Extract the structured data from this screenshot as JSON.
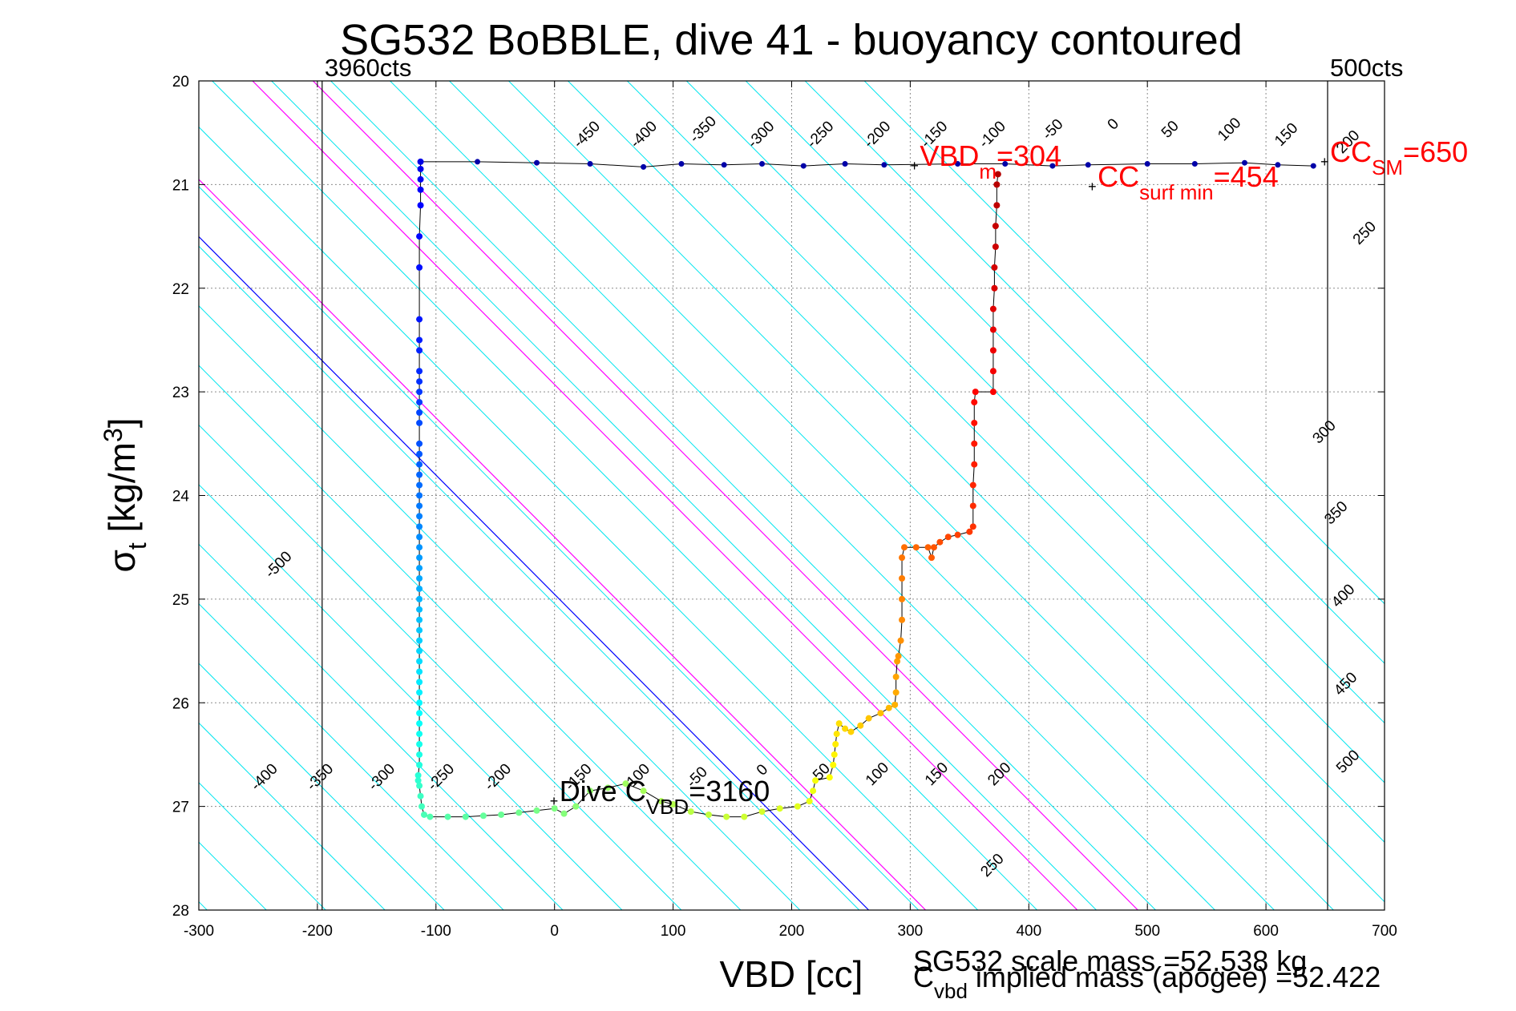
{
  "chart_data": {
    "type": "scatter",
    "title": "SG532 BoBBLE, dive 41 - buoyancy contoured",
    "xlabel": "VBD [cc]",
    "ylabel_main": "σ",
    "ylabel_sub": "t",
    "ylabel_unit_pre": " [kg/m",
    "ylabel_unit_sup": "3",
    "ylabel_unit_post": "]",
    "xlim": [
      -300,
      700
    ],
    "ylim": [
      28,
      20
    ],
    "y_reversed": true,
    "grid": true,
    "x_ticks": [
      -300,
      -200,
      -100,
      0,
      100,
      200,
      300,
      400,
      500,
      600,
      700
    ],
    "y_ticks": [
      20,
      21,
      22,
      23,
      24,
      25,
      26,
      27,
      28
    ],
    "x_tick_labels": [
      "-300",
      "-200",
      "-100",
      "0",
      "100",
      "200",
      "300",
      "400",
      "500",
      "600",
      "700"
    ],
    "y_tick_labels": [
      "20",
      "21",
      "22",
      "23",
      "24",
      "25",
      "26",
      "27",
      "28"
    ],
    "vertical_limits": [
      {
        "x": -196,
        "label": "3960cts"
      },
      {
        "x": 652,
        "label": "500cts"
      }
    ],
    "contour_slope": 0.0115,
    "contour_step": 50,
    "contour_range": [
      -500,
      500
    ],
    "contour_x_at_sigma27": [
      -480,
      -430,
      -380,
      -330,
      -280,
      -230,
      -180,
      -130,
      -80,
      -30,
      20,
      70,
      120,
      170,
      220,
      270,
      320,
      370,
      420,
      470,
      520
    ],
    "contour_labels_bottom": [
      {
        "text": "-400",
        "x": -242,
        "y": 26.75
      },
      {
        "text": "-350",
        "x": -195,
        "y": 26.75
      },
      {
        "text": "-300",
        "x": -143,
        "y": 26.75
      },
      {
        "text": "-250",
        "x": -93,
        "y": 26.75
      },
      {
        "text": "-200",
        "x": -45,
        "y": 26.75
      },
      {
        "text": "-150",
        "x": 23,
        "y": 26.75
      },
      {
        "text": "-100",
        "x": 72,
        "y": 26.75
      },
      {
        "text": "-50",
        "x": 123,
        "y": 26.75
      },
      {
        "text": "0",
        "x": 178,
        "y": 26.68
      },
      {
        "text": "50",
        "x": 228,
        "y": 26.7
      },
      {
        "text": "100",
        "x": 275,
        "y": 26.72
      },
      {
        "text": "150",
        "x": 325,
        "y": 26.72
      },
      {
        "text": "200",
        "x": 378,
        "y": 26.72
      },
      {
        "text": "250",
        "x": 372,
        "y": 27.6
      }
    ],
    "contour_labels_top": [
      {
        "text": "-450",
        "x": 30,
        "y": 20.55
      },
      {
        "text": "-400",
        "x": 78,
        "y": 20.55
      },
      {
        "text": "-350",
        "x": 128,
        "y": 20.5
      },
      {
        "text": "-300",
        "x": 177,
        "y": 20.55
      },
      {
        "text": "-250",
        "x": 227,
        "y": 20.55
      },
      {
        "text": "-200",
        "x": 275,
        "y": 20.55
      },
      {
        "text": "-150",
        "x": 323,
        "y": 20.55
      },
      {
        "text": "-100",
        "x": 372,
        "y": 20.55
      },
      {
        "text": "-50",
        "x": 423,
        "y": 20.5
      },
      {
        "text": "0",
        "x": 474,
        "y": 20.45
      },
      {
        "text": "50",
        "x": 522,
        "y": 20.5
      },
      {
        "text": "100",
        "x": 572,
        "y": 20.5
      },
      {
        "text": "150",
        "x": 620,
        "y": 20.55
      },
      {
        "text": "200",
        "x": 672,
        "y": 20.62
      },
      {
        "text": "250",
        "x": 686,
        "y": 21.5
      },
      {
        "text": "300",
        "x": 652,
        "y": 23.42
      },
      {
        "text": "350",
        "x": 662,
        "y": 24.2
      },
      {
        "text": "400",
        "x": 668,
        "y": 25.0
      },
      {
        "text": "450",
        "x": 670,
        "y": 25.85
      },
      {
        "text": "500",
        "x": 672,
        "y": 26.6
      },
      {
        "text": "-500",
        "x": -230,
        "y": 24.7
      }
    ],
    "neutral_line": {
      "color": "#0000ff",
      "x_at_sigma27": 178
    },
    "magenta_lines": {
      "color": "#ff00ff",
      "x_at_sigma27": [
        226,
        354,
        405
      ]
    },
    "series": [
      {
        "points": [
          [
            -113,
            20.78
          ],
          [
            -113,
            20.85
          ],
          [
            -113,
            20.95
          ],
          [
            -113,
            21.05
          ],
          [
            -113,
            21.2
          ],
          [
            -114,
            21.5
          ],
          [
            -114,
            21.8
          ],
          [
            -114,
            22.3
          ],
          [
            -114,
            22.5
          ],
          [
            -114,
            22.6
          ],
          [
            -114,
            22.8
          ],
          [
            -114,
            22.9
          ],
          [
            -114,
            23.0
          ],
          [
            -114,
            23.1
          ],
          [
            -114,
            23.2
          ],
          [
            -114,
            23.3
          ],
          [
            -114,
            23.5
          ],
          [
            -114,
            23.6
          ],
          [
            -114,
            23.7
          ],
          [
            -114,
            23.8
          ],
          [
            -114,
            23.9
          ],
          [
            -114,
            24.0
          ],
          [
            -114,
            24.1
          ],
          [
            -114,
            24.2
          ],
          [
            -114,
            24.3
          ],
          [
            -114,
            24.4
          ],
          [
            -114,
            24.5
          ],
          [
            -114,
            24.6
          ],
          [
            -114,
            24.7
          ],
          [
            -114,
            24.8
          ],
          [
            -114,
            24.9
          ],
          [
            -114,
            25.0
          ],
          [
            -114,
            25.1
          ],
          [
            -114,
            25.2
          ],
          [
            -114,
            25.3
          ],
          [
            -114,
            25.4
          ],
          [
            -114,
            25.5
          ],
          [
            -114,
            25.6
          ],
          [
            -114,
            25.7
          ],
          [
            -114,
            25.8
          ],
          [
            -114,
            25.9
          ],
          [
            -114,
            26.0
          ],
          [
            -114,
            26.1
          ],
          [
            -114,
            26.2
          ],
          [
            -114,
            26.3
          ],
          [
            -114,
            26.4
          ],
          [
            -114,
            26.5
          ],
          [
            -114,
            26.6
          ],
          [
            -115,
            26.7
          ],
          [
            -115,
            26.75
          ],
          [
            -114,
            26.8
          ],
          [
            -113,
            26.9
          ],
          [
            -112,
            27.0
          ],
          [
            -110,
            27.08
          ],
          [
            -105,
            27.1
          ],
          [
            -90,
            27.1
          ],
          [
            -75,
            27.1
          ],
          [
            -60,
            27.09
          ],
          [
            -45,
            27.08
          ],
          [
            -30,
            27.06
          ],
          [
            -15,
            27.04
          ],
          [
            0,
            27.02
          ],
          [
            8,
            27.07
          ],
          [
            18,
            27.0
          ],
          [
            30,
            26.85
          ],
          [
            45,
            26.82
          ],
          [
            60,
            26.78
          ],
          [
            75,
            26.85
          ],
          [
            90,
            26.95
          ],
          [
            100,
            26.98
          ],
          [
            115,
            27.05
          ],
          [
            130,
            27.08
          ],
          [
            145,
            27.1
          ],
          [
            160,
            27.1
          ],
          [
            175,
            27.05
          ],
          [
            190,
            27.02
          ],
          [
            205,
            27.0
          ],
          [
            215,
            26.95
          ],
          [
            218,
            26.85
          ],
          [
            220,
            26.75
          ],
          [
            232,
            26.72
          ],
          [
            235,
            26.6
          ],
          [
            236,
            26.5
          ],
          [
            237,
            26.4
          ],
          [
            238,
            26.3
          ],
          [
            240,
            26.2
          ],
          [
            245,
            26.25
          ],
          [
            250,
            26.28
          ],
          [
            258,
            26.22
          ],
          [
            265,
            26.15
          ],
          [
            275,
            26.1
          ],
          [
            282,
            26.05
          ],
          [
            287,
            26.02
          ],
          [
            288,
            25.9
          ],
          [
            288,
            25.75
          ],
          [
            289,
            25.6
          ],
          [
            290,
            25.55
          ],
          [
            292,
            25.4
          ],
          [
            293,
            25.2
          ],
          [
            293,
            25.0
          ],
          [
            293,
            24.8
          ],
          [
            293,
            24.6
          ],
          [
            295,
            24.5
          ],
          [
            305,
            24.5
          ],
          [
            315,
            24.5
          ],
          [
            318,
            24.6
          ],
          [
            320,
            24.5
          ],
          [
            325,
            24.45
          ],
          [
            332,
            24.4
          ],
          [
            340,
            24.38
          ],
          [
            350,
            24.35
          ],
          [
            353,
            24.3
          ],
          [
            353,
            24.1
          ],
          [
            353,
            23.9
          ],
          [
            354,
            23.7
          ],
          [
            354,
            23.5
          ],
          [
            354,
            23.3
          ],
          [
            354,
            23.1
          ],
          [
            355,
            23.0
          ],
          [
            370,
            23.0
          ],
          [
            370,
            22.8
          ],
          [
            370,
            22.6
          ],
          [
            370,
            22.4
          ],
          [
            370,
            22.2
          ],
          [
            371,
            22.0
          ],
          [
            371,
            21.8
          ],
          [
            372,
            21.6
          ],
          [
            372,
            21.4
          ],
          [
            373,
            21.2
          ],
          [
            373,
            21.0
          ],
          [
            374,
            20.9
          ]
        ],
        "surface_points": [
          [
            -113,
            20.78
          ],
          [
            -65,
            20.78
          ],
          [
            -15,
            20.79
          ],
          [
            30,
            20.8
          ],
          [
            75,
            20.83
          ],
          [
            107,
            20.8
          ],
          [
            143,
            20.81
          ],
          [
            175,
            20.8
          ],
          [
            210,
            20.82
          ],
          [
            245,
            20.8
          ],
          [
            278,
            20.81
          ],
          [
            340,
            20.8
          ],
          [
            380,
            20.8
          ],
          [
            420,
            20.82
          ],
          [
            450,
            20.81
          ],
          [
            500,
            20.8
          ],
          [
            540,
            20.8
          ],
          [
            582,
            20.79
          ],
          [
            610,
            20.81
          ],
          [
            640,
            20.82
          ]
        ]
      }
    ],
    "annotations": [
      {
        "text": "VBD",
        "sub": "m",
        "tail": "=304",
        "x": 304,
        "y": 20.82,
        "color": "#ff0000"
      },
      {
        "text": "CC",
        "sub": "surf min",
        "tail": "=454",
        "x": 454,
        "y": 21.02,
        "color": "#ff0000"
      },
      {
        "text": "CC",
        "sub": "SM",
        "tail": "=650",
        "x": 650,
        "y": 20.78,
        "color": "#ff0000"
      },
      {
        "text": "Dive C",
        "sub": "VBD",
        "tail": "=3160",
        "x": 0,
        "y": 26.95,
        "color": "#000000"
      }
    ],
    "footer": [
      {
        "text": "SG532 scale mass =52.538 kg"
      },
      {
        "text": "C",
        "sub": "vbd",
        "tail": " implied mass (apogee) =52.422"
      }
    ]
  }
}
